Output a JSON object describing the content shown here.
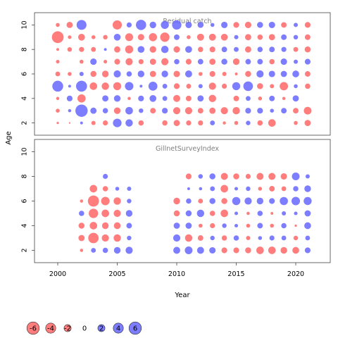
{
  "chart_data": {
    "type": "scatter",
    "xlabel": "Year",
    "ylabel": "Age",
    "xlim": [
      1998,
      2023
    ],
    "x_ticks": [
      2000,
      2005,
      2010,
      2015,
      2020
    ],
    "colors": {
      "positive": "#6666ff",
      "negative": "#ff6666"
    },
    "panels": [
      {
        "title": "Residual catch",
        "ylim": [
          1,
          11
        ],
        "y_ticks": [
          2,
          4,
          6,
          8,
          10
        ],
        "years": [
          2000,
          2001,
          2002,
          2003,
          2004,
          2005,
          2006,
          2007,
          2008,
          2009,
          2010,
          2011,
          2012,
          2013,
          2014,
          2015,
          2016,
          2017,
          2018,
          2019,
          2020,
          2021
        ],
        "ages": [
          2,
          3,
          4,
          5,
          6,
          7,
          8,
          9,
          10
        ],
        "residuals": [
          [
            -0.2,
            -0.1,
            0.3,
            -0.7,
            -1.0,
            2.9,
            2.1,
            -1.1,
            0.0,
            -1.1,
            -1.5,
            -1.0,
            -1.0,
            0.9,
            -0.4,
            -0.6,
            0.8,
            -1.1,
            -2.2,
            0.0,
            -0.6,
            -1.5
          ],
          [
            -0.6,
            0.4,
            5.9,
            1.5,
            1.1,
            -1.7,
            2.2,
            0.8,
            -1.2,
            1.3,
            -2.0,
            -2.0,
            -1.2,
            -1.5,
            -2.0,
            -2.1,
            1.3,
            1.3,
            0.6,
            1.2,
            -1.2,
            -2.3
          ],
          [
            -0.4,
            1.3,
            -2.6,
            0.0,
            1.5,
            1.7,
            -0.4,
            1.3,
            1.8,
            0.9,
            -1.9,
            -1.2,
            1.5,
            -2.1,
            0.0,
            -1.2,
            0.9,
            -0.6,
            1.2,
            -0.4,
            1.5,
            0.0
          ],
          [
            4.6,
            0.3,
            4.7,
            -2.2,
            -2.1,
            -2.5,
            2.8,
            0.3,
            3.1,
            0.9,
            -1.3,
            -0.9,
            0.7,
            -2.0,
            -1.0,
            2.5,
            3.6,
            -1.4,
            -0.7,
            -2.7,
            0.6,
            -1.1
          ],
          [
            -0.9,
            -0.6,
            0.7,
            -1.4,
            -1.7,
            2.0,
            1.1,
            1.7,
            -1.5,
            1.7,
            -1.6,
            1.9,
            -0.6,
            -1.3,
            -0.7,
            -0.3,
            -1.4,
            2.0,
            1.6,
            1.5,
            1.8,
            -1.2
          ],
          [
            -0.5,
            0.0,
            -0.6,
            1.6,
            -0.5,
            -1.3,
            -2.0,
            -1.0,
            -1.5,
            -2.0,
            1.1,
            -1.3,
            1.2,
            -1.5,
            1.4,
            -1.7,
            1.2,
            1.2,
            -1.1,
            1.6,
            0.7,
            1.3
          ],
          [
            -0.3,
            -0.8,
            -1.0,
            -0.9,
            0.3,
            -1.5,
            -2.5,
            1.8,
            -1.7,
            2.1,
            -1.6,
            1.8,
            -1.1,
            -1.3,
            1.2,
            0.9,
            -1.5,
            1.1,
            1.2,
            1.0,
            -0.9,
            -1.4
          ],
          [
            -5.4,
            -0.5,
            -1.8,
            -0.6,
            -0.8,
            1.8,
            -2.4,
            -1.6,
            -2.6,
            -3.4,
            1.2,
            -0.6,
            -1.9,
            -1.9,
            -1.8,
            0.7,
            -1.5,
            -1.1,
            -1.5,
            1.2,
            0.8,
            -1.2
          ],
          [
            -0.6,
            -1.5,
            3.8,
            0.0,
            0.0,
            -3.3,
            1.0,
            4.1,
            1.7,
            2.5,
            3.4,
            1.6,
            1.4,
            0.6,
            1.6,
            -1.3,
            -1.6,
            1.4,
            1.6,
            -1.2,
            0.7,
            -1.3
          ]
        ]
      },
      {
        "title": "GillnetSurveyIndex",
        "ylim": [
          1,
          11
        ],
        "y_ticks": [
          2,
          4,
          6,
          8,
          10
        ],
        "years": [
          2002,
          2003,
          2004,
          2005,
          2006,
          2010,
          2011,
          2012,
          2013,
          2014,
          2015,
          2016,
          2017,
          2018,
          2019,
          2020,
          2021
        ],
        "ages": [
          2,
          3,
          4,
          5,
          6,
          7,
          8
        ],
        "residuals": [
          [
            -0.4,
            0.9,
            1.1,
            1.7,
            2.0,
            1.9,
            2.3,
            1.9,
            1.6,
            -1.3,
            -1.3,
            -1.4,
            -2.2,
            -2.2,
            -1.7,
            -1.8,
            1.3
          ],
          [
            -1.5,
            -4.2,
            -2.0,
            -2.1,
            0.8,
            2.0,
            -2.1,
            -1.2,
            0.8,
            -1.1,
            1.1,
            -0.7,
            0.6,
            1.0,
            0.9,
            -0.8,
            0.9
          ],
          [
            -1.4,
            -2.2,
            -1.7,
            -1.8,
            1.2,
            1.5,
            1.5,
            -0.6,
            -1.0,
            0.8,
            0.5,
            -0.6,
            1.2,
            -0.6,
            1.1,
            -0.2,
            1.8
          ],
          [
            1.1,
            -3.4,
            -2.2,
            -2.0,
            1.7,
            -1.4,
            1.4,
            2.1,
            -1.1,
            -2.2,
            0.5,
            -0.4,
            1.1,
            -0.3,
            0.7,
            0.5,
            1.5
          ],
          [
            -0.4,
            -4.8,
            -2.8,
            -2.1,
            0.8,
            -1.7,
            1.1,
            -0.9,
            1.4,
            -1.4,
            2.6,
            2.0,
            1.7,
            1.3,
            2.6,
            2.8,
            2.5
          ],
          [
            0.0,
            -2.2,
            -1.1,
            0.6,
            0.7,
            0.0,
            0.3,
            0.4,
            0.9,
            -2.2,
            0.5,
            0.8,
            -0.6,
            -1.2,
            -0.9,
            1.1,
            1.7
          ],
          [
            0.0,
            0.0,
            1.0,
            0.0,
            0.0,
            0.0,
            -1.3,
            0.8,
            1.4,
            -1.9,
            -1.4,
            -1.0,
            -1.9,
            -1.9,
            -1.6,
            2.3,
            0.7
          ]
        ]
      }
    ],
    "legend": {
      "values": [
        -6,
        -4,
        -2,
        0,
        2,
        4,
        6
      ],
      "labels": [
        "-6",
        "-4",
        "-2",
        "0",
        "2",
        "4",
        "6"
      ]
    }
  }
}
